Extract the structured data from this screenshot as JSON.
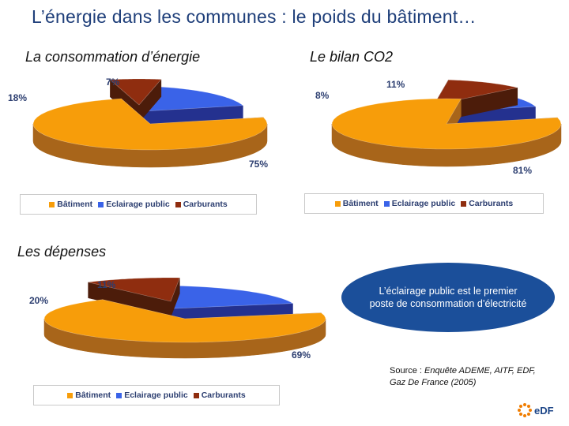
{
  "title": "L’énergie dans les communes : le poids du bâtiment…",
  "headings": {
    "consumption": "La consommation d’énergie",
    "co2": "Le bilan CO2",
    "spending": "Les dépenses"
  },
  "colors": {
    "batiment": "#f79d0a",
    "batiment_side": "#a8651a",
    "eclairage": "#3a63e8",
    "eclairage_side": "#24318f",
    "carburants": "#8f2d0f",
    "carburants_side": "#4c1c0a",
    "title": "#1f3f7a",
    "callout": "#1b4f9a"
  },
  "chart_data": [
    {
      "type": "pie",
      "title": "La consommation d’énergie",
      "categories": [
        "Bâtiment",
        "Eclairage public",
        "Carburants"
      ],
      "values": [
        75,
        18,
        7
      ],
      "labels": [
        "75%",
        "18%",
        "7%"
      ],
      "legend": [
        "Bâtiment",
        "Eclairage public",
        "Carburants"
      ],
      "legend_position": "bottom",
      "style": "3d-exploded"
    },
    {
      "type": "pie",
      "title": "Le bilan CO2",
      "categories": [
        "Bâtiment",
        "Eclairage public",
        "Carburants"
      ],
      "values": [
        81,
        8,
        11
      ],
      "labels": [
        "81%",
        "8%",
        "11%"
      ],
      "legend": [
        "Bâtiment",
        "Eclairage public",
        "Carburants"
      ],
      "legend_position": "bottom",
      "style": "3d-exploded"
    },
    {
      "type": "pie",
      "title": "Les dépenses",
      "categories": [
        "Bâtiment",
        "Eclairage public",
        "Carburants"
      ],
      "values": [
        69,
        20,
        11
      ],
      "labels": [
        "69%",
        "20%",
        "11%"
      ],
      "legend": [
        "Bâtiment",
        "Eclairage public",
        "Carburants"
      ],
      "legend_position": "bottom",
      "style": "3d-exploded"
    }
  ],
  "callout": "L’éclairage public est le premier poste de consommation d’électricité",
  "source": {
    "prefix": "Source :",
    "text": "Enquête ADEME, AITF, EDF, Gaz De France (2005)"
  },
  "logo_text": "eDF",
  "icon": "edf-logo-icon"
}
